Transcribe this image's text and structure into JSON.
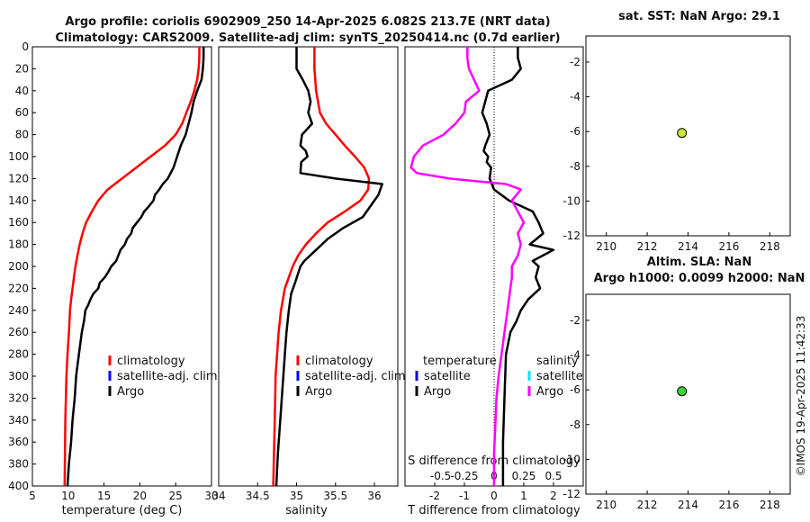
{
  "header": {
    "line1": "Argo profile: coriolis 6902909_250 14-Apr-2025 6.082S 213.7E (NRT data)",
    "line2": "Climatology: CARS2009. Satellite-adj clim: synTS_20250414.nc (0.7d earlier)"
  },
  "colors": {
    "climatology": "#ff0000",
    "satellite_clim": "#0000ff",
    "argo": "#000000",
    "salinity_satellite": "#00e5ff",
    "salinity_diff": "#ff00ff",
    "sst_marker": "#c8e632",
    "sla_marker": "#39d639"
  },
  "chart_data": [
    {
      "id": "temperature",
      "type": "line",
      "xlabel": "temperature (deg C)",
      "ylabel": "",
      "xlim": [
        5,
        30
      ],
      "ylim": [
        400,
        0
      ],
      "xticks": [
        5,
        10,
        15,
        20,
        25,
        30
      ],
      "yticks": [
        0,
        20,
        40,
        60,
        80,
        100,
        120,
        140,
        160,
        180,
        200,
        220,
        240,
        260,
        280,
        300,
        320,
        340,
        360,
        380,
        400
      ],
      "legend": [
        "climatology",
        "satellite-adj. clim",
        "Argo"
      ],
      "series": [
        {
          "name": "climatology",
          "x": [
            28.3,
            28.3,
            28.2,
            28.0,
            27.6,
            27.1,
            26.5,
            25.9,
            25.0,
            23.5,
            21.5,
            19.5,
            17.5,
            15.5,
            14.2,
            13.3,
            12.5,
            12.0,
            11.6,
            11.3,
            11.0,
            10.8,
            10.6,
            10.4,
            10.25,
            10.1,
            9.9,
            9.75,
            9.6,
            9.5
          ],
          "y": [
            0,
            10,
            20,
            30,
            40,
            50,
            60,
            70,
            80,
            90,
            100,
            110,
            120,
            130,
            140,
            150,
            160,
            170,
            180,
            190,
            200,
            210,
            220,
            230,
            240,
            260,
            280,
            300,
            340,
            400
          ]
        },
        {
          "name": "Argo",
          "x": [
            28.9,
            28.9,
            28.8,
            28.6,
            28.0,
            27.5,
            27.2,
            26.8,
            26.4,
            25.7,
            25.2,
            24.7,
            24.3,
            23.9,
            23.2,
            22.7,
            22.1,
            21.9,
            21.3,
            20.6,
            20.2,
            19.6,
            19.0,
            18.8,
            18.2,
            17.9,
            17.3,
            17.0,
            16.7,
            16.0,
            15.6,
            15.1,
            14.4,
            14.2,
            13.5,
            13.1,
            12.8,
            12.4,
            12.2,
            11.9,
            11.7,
            11.5,
            11.3,
            11.1,
            10.9,
            10.6,
            10.4,
            10.1,
            9.9
          ],
          "y": [
            0,
            10,
            20,
            30,
            40,
            50,
            60,
            70,
            80,
            90,
            100,
            110,
            115,
            120,
            125,
            130,
            135,
            140,
            145,
            150,
            155,
            160,
            165,
            170,
            175,
            180,
            185,
            190,
            195,
            200,
            205,
            210,
            215,
            220,
            225,
            230,
            235,
            240,
            250,
            260,
            270,
            280,
            290,
            300,
            320,
            340,
            360,
            380,
            400
          ]
        }
      ]
    },
    {
      "id": "salinity",
      "type": "line",
      "xlabel": "salinity",
      "xlim": [
        34,
        36.3
      ],
      "ylim": [
        400,
        0
      ],
      "xticks": [
        34,
        34.5,
        35,
        35.5,
        36
      ],
      "xtick_labels": [
        "34",
        "34.5",
        "35",
        "35.5",
        "36"
      ],
      "legend": [
        "climatology",
        "satellite-adj. clim",
        "Argo"
      ],
      "series": [
        {
          "name": "climatology",
          "x": [
            35.23,
            35.23,
            35.25,
            35.3,
            35.38,
            35.5,
            35.62,
            35.75,
            35.87,
            35.93,
            35.92,
            35.82,
            35.62,
            35.4,
            35.25,
            35.12,
            35.02,
            34.95,
            34.9,
            34.85,
            34.8,
            34.77,
            34.75,
            34.73,
            34.72,
            34.7
          ],
          "y": [
            0,
            20,
            40,
            60,
            70,
            80,
            90,
            100,
            110,
            120,
            130,
            140,
            150,
            160,
            170,
            180,
            190,
            200,
            210,
            220,
            240,
            260,
            280,
            300,
            340,
            400
          ]
        },
        {
          "name": "Argo",
          "x": [
            35.0,
            35.0,
            35.08,
            35.15,
            35.18,
            35.15,
            35.2,
            35.07,
            35.05,
            35.12,
            35.14,
            35.06,
            35.05,
            35.5,
            36.1,
            36.05,
            35.95,
            35.85,
            35.6,
            35.4,
            35.25,
            35.1,
            35.05,
            34.98,
            34.93,
            34.9,
            34.87,
            34.85,
            34.83,
            34.81,
            34.79,
            34.76,
            34.74
          ],
          "y": [
            0,
            20,
            30,
            40,
            50,
            60,
            70,
            80,
            90,
            95,
            100,
            105,
            115,
            120,
            125,
            135,
            145,
            155,
            165,
            175,
            185,
            195,
            200,
            215,
            225,
            240,
            260,
            280,
            300,
            320,
            340,
            370,
            400
          ]
        }
      ]
    },
    {
      "id": "difference",
      "type": "line",
      "xlabel": "T difference from climatology",
      "top_label": "S difference from climatology",
      "xlim": [
        -3,
        3
      ],
      "ylim": [
        400,
        0
      ],
      "xticks": [
        -2,
        -1,
        0,
        1,
        2
      ],
      "s_ticks": [
        "-0.5",
        "-0.25",
        "0",
        "0.25",
        "0.5"
      ],
      "legend_temperature": {
        "title": "temperature",
        "items": [
          "satellite",
          "Argo"
        ]
      },
      "legend_salinity": {
        "title": "salinity",
        "items": [
          "satellite",
          "Argo"
        ]
      },
      "series": [
        {
          "name": "T difference (Argo)",
          "x": [
            0.8,
            0.8,
            0.9,
            0.6,
            -0.2,
            -0.3,
            -0.4,
            -0.25,
            -0.15,
            -0.3,
            -0.35,
            -0.2,
            -0.25,
            -0.1,
            -0.15,
            0.0,
            0.5,
            1.3,
            1.5,
            1.65,
            1.2,
            2.0,
            1.3,
            1.5,
            1.4,
            1.55,
            1.15,
            0.9,
            0.75,
            0.55,
            0.4,
            0.35,
            0.3,
            0.3
          ],
          "y": [
            0,
            10,
            20,
            30,
            40,
            50,
            60,
            70,
            80,
            90,
            95,
            100,
            105,
            110,
            120,
            130,
            140,
            150,
            160,
            170,
            180,
            185,
            195,
            200,
            210,
            220,
            230,
            240,
            250,
            260,
            280,
            320,
            360,
            400
          ]
        },
        {
          "name": "S difference (Argo)",
          "x": [
            -0.9,
            -0.9,
            -0.85,
            -0.5,
            -0.95,
            -1.0,
            -1.3,
            -1.7,
            -2.4,
            -2.7,
            -2.8,
            -2.6,
            -1.5,
            0.4,
            0.9,
            0.6,
            1.0,
            0.8,
            0.9,
            0.8,
            0.6,
            0.6,
            0.55,
            0.5,
            0.45,
            0.35,
            0.25,
            0.15,
            0.08,
            0.05,
            0.0,
            0.0
          ],
          "y": [
            0,
            10,
            20,
            40,
            50,
            60,
            70,
            80,
            90,
            100,
            110,
            115,
            120,
            125,
            130,
            140,
            160,
            170,
            180,
            190,
            200,
            210,
            220,
            230,
            240,
            260,
            280,
            300,
            320,
            340,
            370,
            400
          ]
        }
      ]
    },
    {
      "id": "sst",
      "type": "scatter",
      "title": "sat. SST: NaN Argo: 29.1",
      "xlim": [
        209,
        219
      ],
      "ylim": [
        -12,
        -0.5
      ],
      "xticks": [
        210,
        212,
        214,
        216,
        218
      ],
      "yticks": [
        -2,
        -4,
        -6,
        -8,
        -10,
        -12
      ],
      "points": [
        {
          "x": 213.7,
          "y": -6.08
        }
      ]
    },
    {
      "id": "sla",
      "type": "scatter",
      "title": "Altim. SLA: NaN",
      "subtitle": "Argo h1000: 0.0099 h2000: NaN",
      "xlim": [
        209,
        219
      ],
      "ylim": [
        -12,
        -0.5
      ],
      "xticks": [
        210,
        212,
        214,
        216,
        218
      ],
      "yticks": [
        -2,
        -4,
        -6,
        -8,
        -10,
        -12
      ],
      "points": [
        {
          "x": 213.7,
          "y": -6.08
        }
      ]
    }
  ],
  "watermark": "©IMOS 19-Apr-2025 11:42:33"
}
